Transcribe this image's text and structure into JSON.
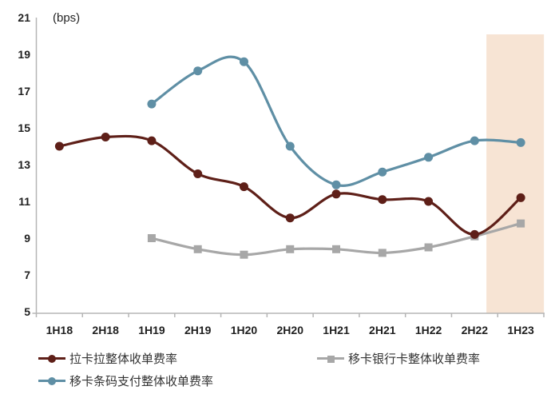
{
  "chart_data": {
    "type": "line",
    "unit_label": "(bps)",
    "categories": [
      "1H18",
      "2H18",
      "1H19",
      "2H19",
      "1H20",
      "2H20",
      "1H21",
      "2H21",
      "1H22",
      "2H22",
      "1H23"
    ],
    "yticks": [
      5,
      7,
      9,
      11,
      13,
      15,
      17,
      19,
      21
    ],
    "ylim": [
      5,
      21
    ],
    "grid": false,
    "legend_position": "bottom",
    "series": [
      {
        "name": "拉卡拉整体收单费率",
        "color": "#5e1f18",
        "marker": "circle",
        "values": [
          14.0,
          14.5,
          14.3,
          12.5,
          11.8,
          10.1,
          11.4,
          11.1,
          11.0,
          9.2,
          11.2
        ]
      },
      {
        "name": "移卡银行卡整体收单费率",
        "color": "#a7a7a7",
        "marker": "square",
        "values": [
          null,
          null,
          9.0,
          8.4,
          8.1,
          8.4,
          8.4,
          8.2,
          8.5,
          9.1,
          9.8
        ]
      },
      {
        "name": "移卡条码支付整体收单费率",
        "color": "#5f8fa5",
        "marker": "circle",
        "values": [
          null,
          null,
          16.3,
          18.1,
          18.6,
          14.0,
          11.9,
          12.6,
          13.4,
          14.3,
          14.2
        ]
      }
    ],
    "highlight": {
      "category": "1H23",
      "color": "#f7e4d4"
    },
    "axis_color": "#b5b5b5"
  }
}
